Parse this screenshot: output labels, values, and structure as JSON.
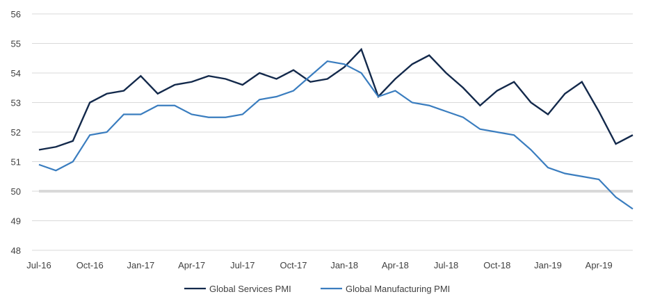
{
  "chart_data": {
    "type": "line",
    "title": "",
    "xlabel": "",
    "ylabel": "",
    "ylim": [
      48,
      56
    ],
    "yticks": [
      48,
      49,
      50,
      51,
      52,
      53,
      54,
      55,
      56
    ],
    "grid": true,
    "legend_position": "bottom",
    "reference_line": 50,
    "x": [
      "Jul-16",
      "Aug-16",
      "Sep-16",
      "Oct-16",
      "Nov-16",
      "Dec-16",
      "Jan-17",
      "Feb-17",
      "Mar-17",
      "Apr-17",
      "May-17",
      "Jun-17",
      "Jul-17",
      "Aug-17",
      "Sep-17",
      "Oct-17",
      "Nov-17",
      "Dec-17",
      "Jan-18",
      "Feb-18",
      "Mar-18",
      "Apr-18",
      "May-18",
      "Jun-18",
      "Jul-18",
      "Aug-18",
      "Sep-18",
      "Oct-18",
      "Nov-18",
      "Dec-18",
      "Jan-19",
      "Feb-19",
      "Mar-19",
      "Apr-19",
      "May-19",
      "Jun-19"
    ],
    "x_tick_labels": [
      "Jul-16",
      "Oct-16",
      "Jan-17",
      "Apr-17",
      "Jul-17",
      "Oct-17",
      "Jan-18",
      "Apr-18",
      "Jul-18",
      "Oct-18",
      "Jan-19",
      "Apr-19"
    ],
    "series": [
      {
        "name": "Global Services PMI",
        "color": "#13294b",
        "values": [
          51.4,
          51.5,
          51.7,
          53.0,
          53.3,
          53.4,
          53.9,
          53.3,
          53.6,
          53.7,
          53.9,
          53.8,
          53.6,
          54.0,
          53.8,
          54.1,
          53.7,
          53.8,
          54.2,
          54.8,
          53.2,
          53.8,
          54.3,
          54.6,
          54.0,
          53.5,
          52.9,
          53.4,
          53.7,
          53.0,
          52.6,
          53.3,
          53.7,
          52.7,
          51.6,
          51.9
        ]
      },
      {
        "name": "Global Manufacturing PMI",
        "color": "#3a7dbf",
        "values": [
          50.9,
          50.7,
          51.0,
          51.9,
          52.0,
          52.6,
          52.6,
          52.9,
          52.9,
          52.6,
          52.5,
          52.5,
          52.6,
          53.1,
          53.2,
          53.4,
          53.9,
          54.4,
          54.3,
          54.0,
          53.2,
          53.4,
          53.0,
          52.9,
          52.7,
          52.5,
          52.1,
          52.0,
          51.9,
          51.4,
          50.8,
          50.6,
          50.5,
          50.4,
          49.8,
          49.4
        ]
      }
    ]
  }
}
